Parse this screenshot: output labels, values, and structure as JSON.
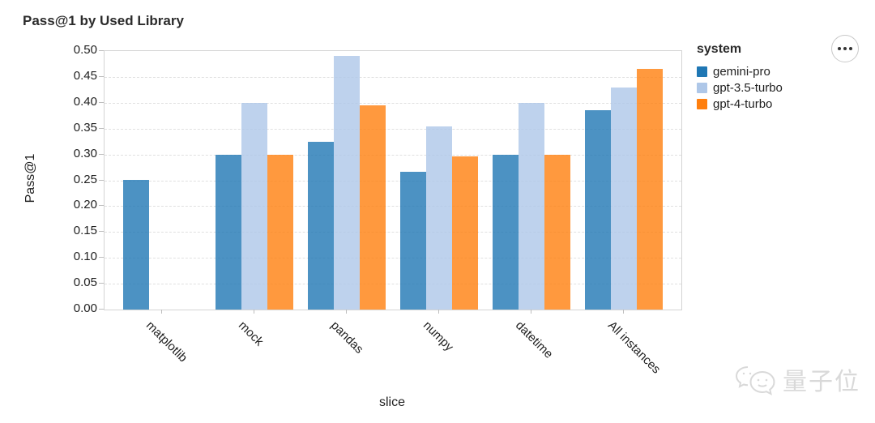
{
  "title": "Pass@1 by Used Library",
  "toolbar": {
    "more_options_icon": "ellipsis"
  },
  "legend": {
    "title": "system"
  },
  "watermark": {
    "icon": "wechat-bubbles-icon",
    "text": "量子位"
  },
  "chart_data": {
    "type": "bar",
    "title": "Pass@1 by Used Library",
    "xlabel": "slice",
    "ylabel": "Pass@1",
    "ylim": [
      0,
      0.5
    ],
    "ytick_interval": 0.05,
    "ytick_format_decimals": 2,
    "grid": true,
    "legend_position": "right",
    "legend_title": "system",
    "categories": [
      "matplotlib",
      "mock",
      "pandas",
      "numpy",
      "datetime",
      "All instances"
    ],
    "series": [
      {
        "name": "gemini-pro",
        "color": "#1f77b4",
        "values": [
          0.251,
          0.3,
          0.325,
          0.267,
          0.3,
          0.385
        ]
      },
      {
        "name": "gpt-3.5-turbo",
        "color": "#aec7e8",
        "values": [
          0,
          0.4,
          0.49,
          0.355,
          0.4,
          0.43
        ]
      },
      {
        "name": "gpt-4-turbo",
        "color": "#ff7f0e",
        "values": [
          0,
          0.3,
          0.395,
          0.296,
          0.3,
          0.465
        ]
      }
    ]
  }
}
